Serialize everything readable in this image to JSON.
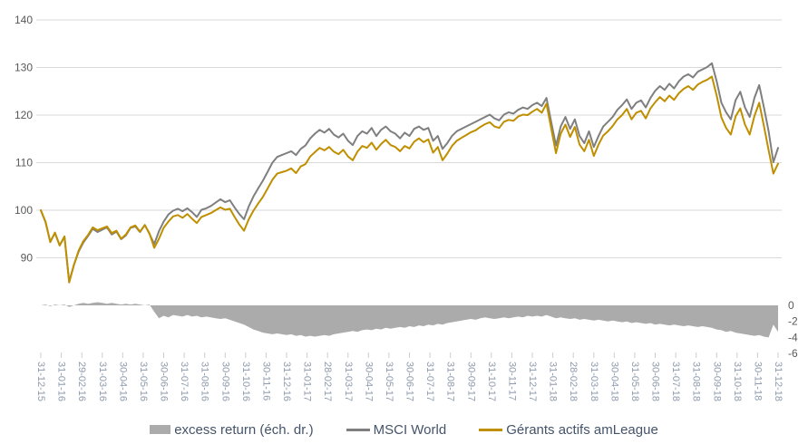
{
  "chart_data": {
    "type": "combo",
    "title": "",
    "x_labels": [
      "31-12-15",
      "31-01-16",
      "29-02-16",
      "31-03-16",
      "30-04-16",
      "31-05-16",
      "30-06-16",
      "31-07-16",
      "31-08-16",
      "30-09-16",
      "31-10-16",
      "30-11-16",
      "31-12-16",
      "31-01-17",
      "28-02-17",
      "31-03-17",
      "30-04-17",
      "31-05-17",
      "30-06-17",
      "31-07-17",
      "31-08-17",
      "30-09-17",
      "31-10-17",
      "30-11-17",
      "31-12-17",
      "31-01-18",
      "28-02-18",
      "31-03-18",
      "30-04-18",
      "31-05-18",
      "30-06-18",
      "31-07-18",
      "31-08-18",
      "30-09-18",
      "31-10-18",
      "30-11-18",
      "31-12-18"
    ],
    "left_axis": {
      "ticks": [
        90,
        100,
        110,
        120,
        130,
        140
      ]
    },
    "right_axis": {
      "ticks": [
        0,
        -2,
        -4,
        -6
      ]
    },
    "grid": "horizontal",
    "legend_position": "bottom",
    "series": [
      {
        "name": "excess return (éch. dr.)",
        "type": "area",
        "axis": "right",
        "color": "#ABABAB",
        "values": [
          0.0,
          0.1,
          -0.1,
          0.1,
          0.0,
          0.1,
          -0.2,
          0.0,
          0.2,
          0.3,
          0.2,
          0.3,
          0.4,
          0.3,
          0.2,
          0.3,
          0.2,
          0.1,
          0.2,
          0.1,
          0.2,
          0.1,
          0.0,
          0.1,
          -0.8,
          -1.6,
          -1.3,
          -1.5,
          -1.2,
          -1.3,
          -1.4,
          -1.2,
          -1.4,
          -1.3,
          -1.5,
          -1.4,
          -1.5,
          -1.6,
          -1.7,
          -1.6,
          -1.8,
          -2.0,
          -2.2,
          -2.4,
          -2.7,
          -3.0,
          -3.2,
          -3.4,
          -3.5,
          -3.6,
          -3.5,
          -3.6,
          -3.7,
          -3.6,
          -3.8,
          -3.7,
          -3.9,
          -3.8,
          -3.9,
          -3.8,
          -3.7,
          -3.8,
          -3.6,
          -3.5,
          -3.4,
          -3.3,
          -3.2,
          -3.3,
          -3.1,
          -3.0,
          -3.1,
          -2.9,
          -3.0,
          -2.8,
          -2.9,
          -2.8,
          -2.7,
          -2.8,
          -2.6,
          -2.7,
          -2.5,
          -2.6,
          -2.4,
          -2.5,
          -2.3,
          -2.4,
          -2.2,
          -2.1,
          -2.0,
          -1.9,
          -1.8,
          -1.7,
          -1.8,
          -1.6,
          -1.5,
          -1.6,
          -1.7,
          -1.6,
          -1.5,
          -1.6,
          -1.5,
          -1.4,
          -1.5,
          -1.3,
          -1.4,
          -1.3,
          -1.4,
          -1.2,
          -1.4,
          -1.6,
          -1.5,
          -1.6,
          -1.7,
          -1.6,
          -1.8,
          -1.7,
          -1.8,
          -1.9,
          -1.8,
          -1.9,
          -2.0,
          -1.9,
          -2.0,
          -2.1,
          -2.0,
          -2.2,
          -2.1,
          -2.2,
          -2.3,
          -2.2,
          -2.4,
          -2.3,
          -2.4,
          -2.5,
          -2.4,
          -2.5,
          -2.6,
          -2.5,
          -2.6,
          -2.7,
          -2.6,
          -2.7,
          -2.8,
          -3.0,
          -3.1,
          -3.3,
          -3.2,
          -3.4,
          -3.5,
          -3.6,
          -3.7,
          -3.8,
          -3.7,
          -3.9,
          -4.0,
          -2.4,
          -3.3
        ]
      },
      {
        "name": "MSCI World",
        "type": "line",
        "axis": "left",
        "color": "#7F7F7F",
        "values": [
          100.0,
          97.5,
          93.4,
          95.2,
          92.6,
          94.4,
          85.0,
          88.5,
          91.3,
          93.2,
          94.6,
          96.1,
          95.4,
          95.9,
          96.4,
          94.9,
          95.5,
          93.9,
          94.7,
          96.3,
          96.6,
          95.4,
          96.9,
          95.0,
          92.9,
          95.6,
          97.6,
          99.1,
          99.9,
          100.3,
          99.8,
          100.4,
          99.6,
          98.6,
          100.1,
          100.4,
          100.9,
          101.6,
          102.3,
          101.7,
          102.1,
          100.6,
          99.2,
          98.1,
          100.8,
          102.9,
          104.6,
          106.2,
          108.1,
          110.0,
          111.2,
          111.6,
          112.0,
          112.4,
          111.6,
          112.9,
          113.6,
          115.1,
          116.1,
          116.9,
          116.3,
          117.1,
          115.9,
          115.3,
          116.1,
          114.6,
          113.7,
          115.6,
          116.6,
          116.1,
          117.3,
          115.6,
          116.9,
          117.6,
          116.6,
          116.1,
          115.1,
          116.3,
          115.6,
          117.1,
          117.6,
          116.9,
          117.3,
          114.6,
          115.6,
          112.9,
          114.1,
          115.6,
          116.6,
          117.1,
          117.6,
          118.1,
          118.6,
          119.1,
          119.6,
          120.1,
          119.3,
          118.9,
          120.1,
          120.6,
          120.3,
          121.1,
          121.6,
          121.3,
          122.1,
          122.6,
          121.9,
          123.6,
          118.6,
          113.6,
          117.6,
          119.6,
          117.1,
          119.1,
          115.6,
          114.1,
          116.6,
          113.3,
          115.6,
          117.6,
          118.6,
          119.6,
          121.1,
          122.1,
          123.3,
          121.3,
          122.6,
          123.1,
          121.6,
          123.6,
          125.1,
          126.1,
          125.3,
          126.6,
          125.6,
          127.1,
          128.1,
          128.6,
          127.9,
          129.1,
          129.6,
          130.1,
          130.9,
          127.1,
          122.6,
          120.6,
          119.1,
          123.1,
          124.9,
          121.6,
          119.6,
          123.6,
          126.3,
          121.6,
          116.6,
          110.1,
          113.1
        ]
      },
      {
        "name": "Gérants actifs amLeague",
        "type": "line",
        "axis": "left",
        "color": "#BF8F00",
        "values": [
          100.0,
          97.6,
          93.3,
          95.3,
          92.6,
          94.5,
          84.8,
          88.5,
          91.5,
          93.5,
          94.8,
          96.4,
          95.8,
          96.2,
          96.6,
          95.2,
          95.7,
          94.0,
          94.9,
          96.4,
          96.8,
          95.5,
          96.9,
          95.1,
          92.1,
          94.0,
          96.3,
          97.6,
          98.7,
          99.0,
          98.4,
          99.2,
          98.2,
          97.3,
          98.6,
          99.0,
          99.4,
          100.0,
          100.6,
          100.1,
          100.3,
          98.6,
          97.0,
          95.7,
          98.1,
          99.9,
          101.4,
          102.8,
          104.6,
          106.4,
          107.7,
          108.0,
          108.3,
          108.8,
          107.8,
          109.2,
          109.7,
          111.3,
          112.2,
          113.1,
          112.6,
          113.3,
          112.3,
          111.8,
          112.7,
          111.3,
          110.5,
          112.3,
          113.5,
          113.1,
          114.2,
          112.7,
          113.9,
          114.8,
          113.7,
          113.3,
          112.4,
          113.5,
          113.0,
          114.4,
          115.1,
          114.3,
          114.9,
          112.1,
          113.3,
          110.5,
          111.9,
          113.5,
          114.6,
          115.2,
          115.8,
          116.4,
          116.8,
          117.5,
          118.1,
          118.5,
          117.6,
          117.3,
          118.6,
          119.0,
          118.8,
          119.7,
          120.1,
          120.0,
          120.7,
          121.3,
          120.5,
          122.4,
          117.2,
          112.0,
          116.1,
          118.0,
          115.4,
          117.5,
          113.8,
          112.4,
          114.8,
          111.4,
          113.8,
          115.7,
          116.6,
          117.7,
          119.1,
          120.0,
          121.3,
          119.1,
          120.5,
          120.9,
          119.3,
          121.4,
          122.7,
          123.8,
          122.9,
          124.1,
          123.2,
          124.6,
          125.5,
          126.1,
          125.3,
          126.4,
          127.0,
          127.4,
          128.1,
          124.1,
          119.5,
          117.3,
          115.9,
          119.7,
          121.4,
          118.0,
          115.9,
          119.8,
          122.6,
          117.7,
          112.6,
          107.7,
          109.8
        ]
      }
    ]
  },
  "colors": {
    "grid": "#D9D9D9",
    "tick": "#C9CDD4",
    "y_axis_text": "#595959",
    "x_axis_text": "#8E9AAD",
    "legend_text": "#44546A",
    "background": "#FFFFFF"
  }
}
